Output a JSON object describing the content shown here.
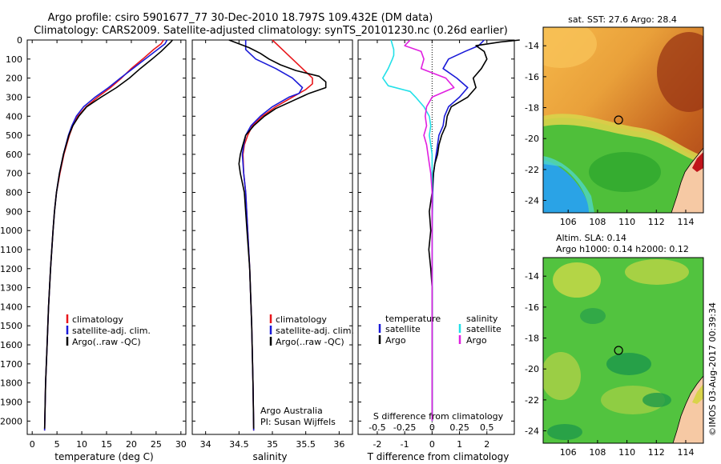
{
  "title": {
    "line1": "Argo profile: csiro 5901677_77 30-Dec-2010 18.797S 109.432E (DM data)",
    "line2": "Climatology: CARS2009. Satellite-adjusted climatology: synTS_20101230.nc (0.26d earlier)"
  },
  "colors": {
    "clim": "#e8161b",
    "sat": "#1a1ad8",
    "argo": "#000000",
    "t_sat": "#1a1ad8",
    "s_sat": "#22e0e8",
    "s_argo": "#e020e0"
  },
  "depth_axis": {
    "ticks": [
      0,
      100,
      200,
      300,
      400,
      500,
      600,
      700,
      800,
      900,
      1000,
      1100,
      1200,
      1300,
      1400,
      1500,
      1600,
      1700,
      1800,
      1900,
      2000
    ],
    "ylim": [
      0,
      2070
    ]
  },
  "chart_data": [
    {
      "type": "line",
      "id": "temperature",
      "xlabel": "temperature (deg C)",
      "ylabel": "",
      "xlim": [
        -1,
        31
      ],
      "x_ticks": [
        0,
        5,
        10,
        15,
        20,
        25,
        30
      ],
      "legend": [
        {
          "label": "climatology",
          "series": "clim"
        },
        {
          "label": "satellite-adj. clim.",
          "series": "sat"
        },
        {
          "label": "Argo(..raw -QC)",
          "series": "argo"
        }
      ],
      "series": [
        {
          "name": "clim",
          "depth": [
            0,
            20,
            50,
            100,
            150,
            200,
            250,
            300,
            350,
            400,
            450,
            500,
            600,
            700,
            800,
            900,
            1000,
            1200,
            1400,
            1600,
            1800,
            2050
          ],
          "values": [
            26.5,
            26.0,
            24.5,
            22.3,
            20.0,
            18.0,
            15.8,
            13.2,
            10.9,
            9.2,
            8.2,
            7.5,
            6.4,
            5.6,
            4.9,
            4.5,
            4.2,
            3.7,
            3.3,
            3.0,
            2.7,
            2.5
          ]
        },
        {
          "name": "sat",
          "depth": [
            0,
            20,
            50,
            100,
            150,
            200,
            250,
            300,
            350,
            400,
            450,
            500,
            600,
            700,
            800,
            900,
            1000,
            1200,
            1400,
            1600,
            1800,
            2050
          ],
          "values": [
            27.2,
            26.8,
            25.3,
            22.8,
            20.3,
            17.8,
            15.4,
            12.7,
            10.4,
            8.9,
            8.0,
            7.3,
            6.3,
            5.5,
            4.9,
            4.5,
            4.2,
            3.7,
            3.3,
            3.0,
            2.7,
            2.5
          ]
        },
        {
          "name": "argo",
          "depth": [
            0,
            10,
            30,
            60,
            100,
            150,
            200,
            250,
            300,
            350,
            400,
            450,
            500,
            600,
            700,
            800,
            900,
            1000,
            1200,
            1400,
            1600,
            1800,
            2040
          ],
          "values": [
            28.3,
            28.0,
            27.2,
            26.0,
            24.2,
            21.8,
            19.6,
            17.0,
            13.9,
            11.0,
            9.4,
            8.2,
            7.4,
            6.3,
            5.5,
            4.9,
            4.5,
            4.2,
            3.7,
            3.3,
            3.0,
            2.7,
            2.5
          ]
        }
      ]
    },
    {
      "type": "line",
      "id": "salinity",
      "xlabel": "salinity",
      "ylabel": "",
      "xlim": [
        33.8,
        36.2
      ],
      "x_ticks": [
        34,
        34.5,
        35,
        35.5,
        36
      ],
      "legend": [
        {
          "label": "climatology",
          "series": "clim"
        },
        {
          "label": "satellite-adj. clim.",
          "series": "sat"
        },
        {
          "label": "Argo(..raw -QC)",
          "series": "argo"
        }
      ],
      "annotations": [
        "Argo Australia",
        "PI: Susan Wijffels"
      ],
      "series": [
        {
          "name": "clim",
          "depth": [
            0,
            50,
            100,
            150,
            200,
            230,
            260,
            300,
            350,
            400,
            450,
            500,
            550,
            600,
            700,
            800,
            1000,
            1200,
            1500,
            1800,
            2050
          ],
          "values": [
            35.0,
            35.15,
            35.3,
            35.45,
            35.6,
            35.6,
            35.5,
            35.3,
            35.05,
            34.85,
            34.7,
            34.63,
            34.58,
            34.56,
            34.57,
            34.6,
            34.63,
            34.66,
            34.69,
            34.71,
            34.72
          ]
        },
        {
          "name": "sat",
          "depth": [
            0,
            50,
            100,
            150,
            200,
            250,
            280,
            300,
            350,
            400,
            450,
            500,
            550,
            600,
            700,
            800,
            1000,
            1200,
            1500,
            1800,
            2050
          ],
          "values": [
            34.6,
            34.6,
            34.75,
            35.05,
            35.3,
            35.45,
            35.4,
            35.25,
            35.0,
            34.82,
            34.68,
            34.6,
            34.57,
            34.55,
            34.57,
            34.6,
            34.63,
            34.66,
            34.69,
            34.71,
            34.72
          ]
        },
        {
          "name": "argo",
          "depth": [
            0,
            20,
            40,
            70,
            100,
            130,
            160,
            190,
            220,
            250,
            280,
            320,
            360,
            400,
            450,
            500,
            560,
            600,
            650,
            700,
            750,
            800,
            1000,
            1200,
            1500,
            1800,
            2040
          ],
          "values": [
            34.35,
            34.5,
            34.65,
            34.82,
            34.95,
            35.12,
            35.35,
            35.7,
            35.8,
            35.8,
            35.55,
            35.3,
            35.05,
            34.88,
            34.72,
            34.6,
            34.55,
            34.52,
            34.5,
            34.52,
            34.55,
            34.58,
            34.62,
            34.66,
            34.69,
            34.71,
            34.72
          ]
        }
      ]
    },
    {
      "type": "line",
      "id": "differences",
      "xlabel": "T difference from climatology",
      "top_xlabel": "S difference from climatology",
      "xlim": [
        -2.7,
        3.0
      ],
      "x_ticks": [
        -2,
        -1,
        0,
        1,
        2
      ],
      "top_ticks": [
        {
          "label": "-0.5",
          "pos": -2
        },
        {
          "label": "-0.25",
          "pos": -1
        },
        {
          "label": "0",
          "pos": 0
        },
        {
          "label": "0.25",
          "pos": 1
        },
        {
          "label": "0.5",
          "pos": 2
        }
      ],
      "legend_temperature": {
        "title": "temperature",
        "items": [
          {
            "label": "satellite",
            "series": "t_sat"
          },
          {
            "label": "Argo",
            "series": "t_argo"
          }
        ]
      },
      "legend_salinity": {
        "title": "salinity",
        "items": [
          {
            "label": "satellite",
            "series": "s_sat"
          },
          {
            "label": "Argo",
            "series": "s_argo"
          }
        ]
      },
      "series": [
        {
          "name": "t_sat",
          "depth": [
            0,
            30,
            60,
            100,
            150,
            200,
            250,
            300,
            350,
            400,
            450,
            500,
            600,
            700,
            800,
            1000,
            1500,
            2000
          ],
          "values": [
            1.9,
            1.7,
            1.2,
            0.6,
            0.4,
            0.9,
            1.3,
            1.0,
            0.6,
            0.45,
            0.4,
            0.25,
            0.15,
            0.05,
            0.02,
            0.0,
            0.0,
            0.0
          ]
        },
        {
          "name": "t_argo",
          "depth": [
            0,
            10,
            30,
            60,
            100,
            150,
            200,
            250,
            300,
            350,
            400,
            450,
            500,
            550,
            600,
            650,
            700,
            800,
            900,
            1000,
            1100,
            1200,
            1300,
            1500,
            1700,
            2000
          ],
          "values": [
            3.2,
            2.5,
            1.6,
            1.9,
            2.0,
            1.8,
            1.5,
            1.6,
            1.3,
            0.7,
            0.55,
            0.5,
            0.35,
            0.25,
            0.2,
            0.1,
            0.05,
            0.0,
            -0.1,
            -0.05,
            -0.12,
            -0.05,
            0.0,
            0.0,
            0.0,
            0.0
          ]
        },
        {
          "name": "s_sat",
          "depth": [
            0,
            50,
            80,
            100,
            150,
            200,
            240,
            270,
            300,
            350,
            400,
            450,
            500,
            550,
            600,
            650,
            700,
            800,
            1000,
            1500,
            2000
          ],
          "values": [
            -1.5,
            -1.4,
            -1.4,
            -1.45,
            -1.6,
            -1.8,
            -1.6,
            -0.8,
            -0.6,
            -0.3,
            -0.1,
            -0.05,
            -0.1,
            -0.05,
            0.0,
            0.0,
            0.0,
            0.0,
            0.0,
            0.0,
            0.0
          ]
        },
        {
          "name": "s_argo",
          "depth": [
            0,
            30,
            60,
            100,
            150,
            200,
            250,
            300,
            350,
            400,
            450,
            500,
            550,
            600,
            650,
            700,
            800,
            1000,
            1500,
            2000
          ],
          "values": [
            -0.8,
            -1.0,
            -0.4,
            -0.3,
            -0.4,
            0.5,
            0.8,
            0.0,
            -0.2,
            -0.25,
            -0.2,
            -0.3,
            -0.2,
            -0.15,
            -0.1,
            -0.05,
            0.0,
            0.0,
            0.0,
            0.0
          ]
        }
      ]
    },
    {
      "type": "heatmap",
      "id": "sst-map",
      "title": "sat. SST: 27.6 Argo: 28.4",
      "x_ticks": [
        106,
        108,
        110,
        112,
        114
      ],
      "y_ticks": [
        -14,
        -16,
        -18,
        -20,
        -22,
        -24
      ],
      "xlim": [
        104.3,
        115.2
      ],
      "ylim": [
        -24.8,
        -12.8
      ],
      "marker": {
        "lon": 109.43,
        "lat": -18.8
      }
    },
    {
      "type": "heatmap",
      "id": "sla-map",
      "title": "Altim. SLA: 0.14",
      "subtitle": "Argo h1000: 0.14 h2000: 0.12",
      "x_ticks": [
        106,
        108,
        110,
        112,
        114
      ],
      "y_ticks": [
        -14,
        -16,
        -18,
        -20,
        -22,
        -24
      ],
      "xlim": [
        104.3,
        115.2
      ],
      "ylim": [
        -24.8,
        -12.8
      ],
      "marker": {
        "lon": 109.43,
        "lat": -18.8
      }
    }
  ],
  "footer_vertical": "©IMOS 03-Aug-2017 00:39:34"
}
